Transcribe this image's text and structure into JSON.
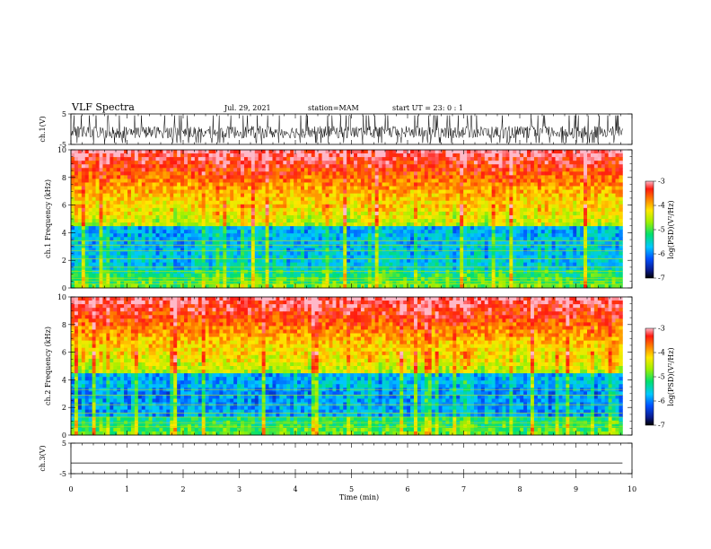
{
  "header": {
    "title": "VLF Spectra",
    "date": "Jul. 29, 2021",
    "station": "station=MAM",
    "start": "start UT = 23: 0 : 1"
  },
  "chart_data": [
    {
      "type": "line",
      "name": "ch1-waveform",
      "ylabel": "ch.1(V)",
      "ylim": [
        -5,
        5
      ],
      "yticks": [
        5,
        -5
      ],
      "xlim": [
        0,
        10
      ],
      "x_end": 9.83,
      "description_values": {
        "typical_amplitude_range": [
          -4.5,
          2.5
        ]
      }
    },
    {
      "type": "heatmap",
      "name": "ch1-spectrogram",
      "ylabel": "ch.1 Frequency (kHz)",
      "ylim": [
        0,
        10
      ],
      "yticks": [
        0,
        2,
        4,
        6,
        8,
        10
      ],
      "xlim": [
        0,
        10
      ],
      "x_end": 9.83,
      "colorbar": {
        "label": "log(PSD)(V²/Hz)",
        "range": [
          -7,
          -3
        ],
        "ticks": [
          -3,
          -4,
          -5,
          -6,
          -7
        ]
      }
    },
    {
      "type": "heatmap",
      "name": "ch2-spectrogram",
      "ylabel": "ch.2 Frequency (kHz)",
      "ylim": [
        0,
        10
      ],
      "yticks": [
        0,
        2,
        4,
        6,
        8,
        10
      ],
      "xlim": [
        0,
        10
      ],
      "x_end": 9.83,
      "colorbar": {
        "label": "log(PSD)(V²/Hz)",
        "range": [
          -7,
          -3
        ],
        "ticks": [
          -3,
          -4,
          -5,
          -6,
          -7
        ]
      }
    },
    {
      "type": "line",
      "name": "ch3-waveform",
      "ylabel": "ch.3(V)",
      "ylim": [
        -5,
        5
      ],
      "yticks": [
        5,
        -5
      ],
      "xlim": [
        0,
        10
      ],
      "x_end": 9.83,
      "x": [
        0,
        9.83
      ],
      "y": [
        -1.5,
        -1.5
      ]
    }
  ],
  "xaxis": {
    "label": "Time (min)",
    "ticks": [
      0,
      1,
      2,
      3,
      4,
      5,
      6,
      7,
      8,
      9,
      10
    ]
  }
}
